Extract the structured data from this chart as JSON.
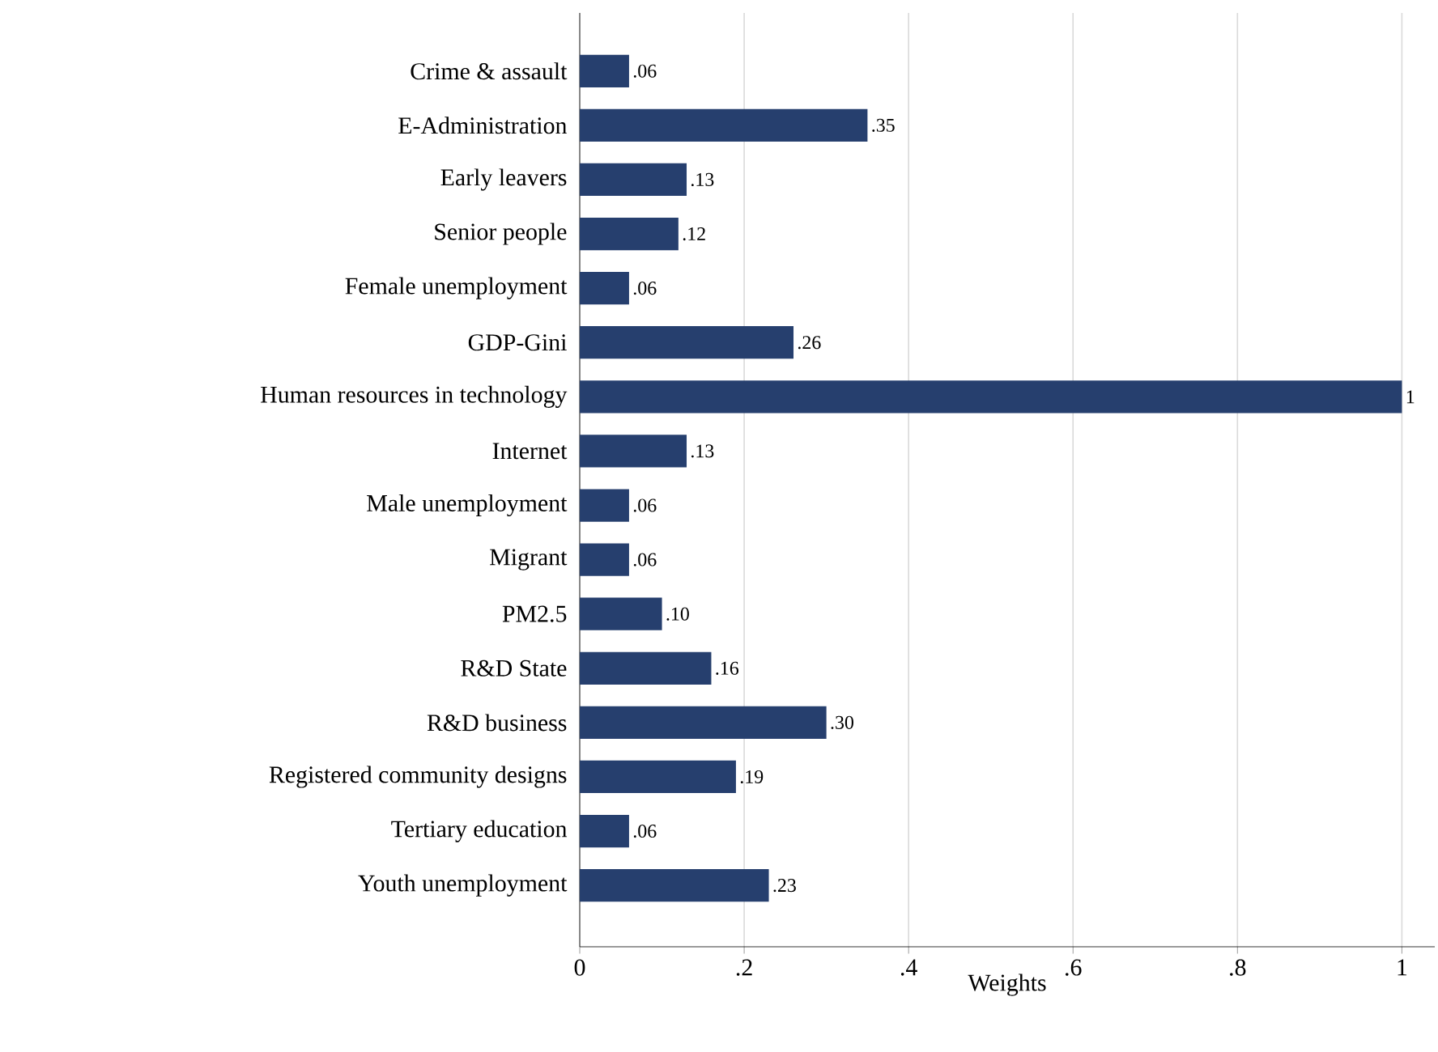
{
  "chart_data": {
    "type": "bar",
    "orientation": "horizontal",
    "xlabel": "Weights",
    "categories": [
      "Crime & assault",
      "E-Administration",
      "Early leavers",
      "Senior people",
      "Female unemployment",
      "GDP-Gini",
      "Human resources in technology",
      "Internet",
      "Male unemployment",
      "Migrant",
      "PM2.5",
      "R&D State",
      "R&D business",
      "Registered community designs",
      "Tertiary education",
      "Youth unemployment"
    ],
    "values": [
      0.06,
      0.35,
      0.13,
      0.12,
      0.06,
      0.26,
      1,
      0.13,
      0.06,
      0.06,
      0.1,
      0.16,
      0.3,
      0.19,
      0.06,
      0.23
    ],
    "value_labels": [
      ".06",
      ".35",
      ".13",
      ".12",
      ".06",
      ".26",
      "1",
      ".13",
      ".06",
      ".06",
      ".10",
      ".16",
      ".30",
      ".19",
      ".06",
      ".23"
    ],
    "color": "#263f6e",
    "xlim": [
      0,
      1.04
    ],
    "xticks": [
      0,
      {
        "value": 0.2,
        "label": ".2"
      },
      {
        "value": 0.4,
        "label": ".4"
      },
      {
        "value": 0.6,
        "label": ".6"
      },
      {
        "value": 0.8,
        "label": ".8"
      },
      1
    ],
    "grid": "x"
  }
}
